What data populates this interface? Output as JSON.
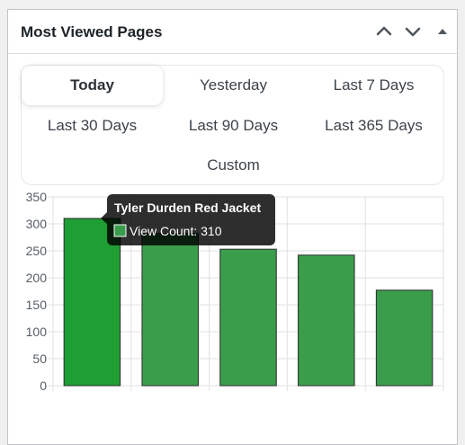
{
  "widget": {
    "title": "Most Viewed Pages"
  },
  "controls": {
    "move_up_icon": "chevron-up-icon",
    "move_down_icon": "chevron-down-icon",
    "toggle_icon": "triangle-up-icon"
  },
  "tabs": [
    {
      "label": "Today",
      "active": true
    },
    {
      "label": "Yesterday",
      "active": false
    },
    {
      "label": "Last 7 Days",
      "active": false
    },
    {
      "label": "Last 30 Days",
      "active": false
    },
    {
      "label": "Last 90 Days",
      "active": false
    },
    {
      "label": "Last 365 Days",
      "active": false
    },
    {
      "label": "Custom",
      "active": false
    }
  ],
  "chart_data": {
    "type": "bar",
    "categories": [
      "Tyler Durden Red Jacket",
      "",
      "",
      "",
      ""
    ],
    "values": [
      310,
      282,
      253,
      242,
      177
    ],
    "ylim": [
      0,
      350
    ],
    "yticks": [
      0,
      50,
      100,
      150,
      200,
      250,
      300,
      350
    ],
    "grid": true,
    "colors": {
      "bar": "#3a9d4c",
      "bar_highlight": "#1f9e34",
      "bar_border": "#2b2b2b",
      "grid": "#e2e2e2"
    },
    "tooltip": {
      "title": "Tyler Durden Red Jacket",
      "series_label": "View Count",
      "value": 310,
      "text": "View Count: 310"
    }
  }
}
